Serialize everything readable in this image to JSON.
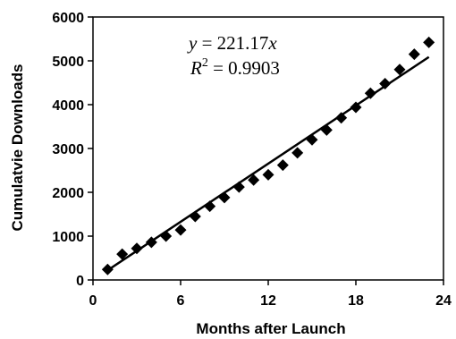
{
  "chart_data": {
    "type": "scatter",
    "xlabel": "Months after Launch",
    "ylabel": "Cumulatvie Downloads",
    "xlim": [
      0,
      24
    ],
    "ylim": [
      0,
      6000
    ],
    "xticks": [
      "0",
      "6",
      "12",
      "18",
      "24"
    ],
    "yticks": [
      "0",
      "1000",
      "2000",
      "3000",
      "4000",
      "5000",
      "6000"
    ],
    "grid": false,
    "legend": "none",
    "marker": "diamond",
    "marker_color": "#000000",
    "series": [
      {
        "x": [
          1,
          2,
          3,
          4,
          5,
          6,
          7,
          8,
          9,
          10,
          11,
          12,
          13,
          14,
          15,
          16,
          17,
          18,
          19,
          20,
          21,
          22,
          23
        ],
        "y": [
          240,
          590,
          720,
          860,
          1000,
          1140,
          1450,
          1680,
          1880,
          2120,
          2280,
          2400,
          2620,
          2900,
          3200,
          3420,
          3700,
          3940,
          4260,
          4480,
          4800,
          5150,
          5420
        ]
      }
    ],
    "trendline": {
      "slope": 221.17,
      "intercept": 0,
      "x_range": [
        1,
        23
      ],
      "color": "#000000"
    },
    "annotation": {
      "equation": {
        "y_var": "y",
        "equals": " = 221.17",
        "x_var": "x"
      },
      "r2": {
        "r": "R",
        "sup": "2",
        "rest": " = 0.9903"
      }
    }
  }
}
